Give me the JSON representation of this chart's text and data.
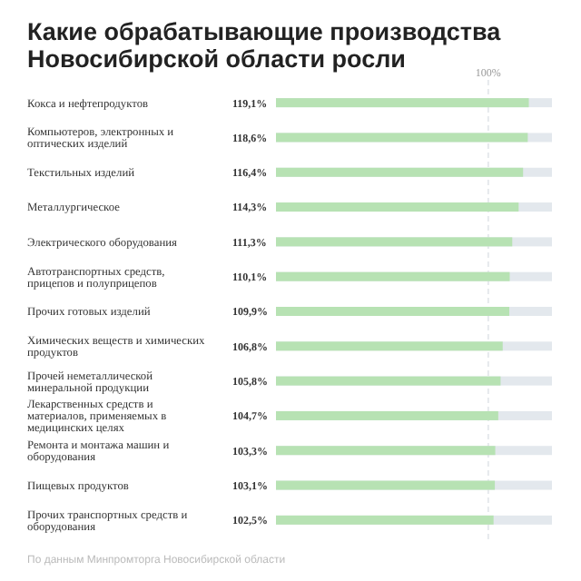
{
  "chart_data": {
    "type": "bar",
    "orientation": "horizontal",
    "title": "Какие обрабатывающие производства Новосибирской области росли",
    "categories": [
      "Кокса и нефтепродуктов",
      "Компьютеров, электронных и оптических изделий",
      "Текстильных изделий",
      "Металлургическое",
      "Электрического оборудования",
      "Автотранспортных средств, прицепов и полуприцепов",
      "Прочих готовых изделий",
      "Химических веществ и химических продуктов",
      "Прочей неметаллической минеральной продукции",
      "Лекарственных средств и материалов, применяемых в медицинских целях",
      "Ремонта и монтажа машин и оборудования",
      "Пищевых продуктов",
      "Прочих транспортных средств и оборудования"
    ],
    "values": [
      119.1,
      118.6,
      116.4,
      114.3,
      111.3,
      110.1,
      109.9,
      106.8,
      105.8,
      104.7,
      103.3,
      103.1,
      102.5
    ],
    "value_labels": [
      "119,1%",
      "118,6%",
      "116,4%",
      "114,3%",
      "111,3%",
      "110,1%",
      "109,9%",
      "106,8%",
      "105,8%",
      "104,7%",
      "103,3%",
      "103,1%",
      "102,5%"
    ],
    "color": "#b7e2b3",
    "xlim": [
      0,
      130
    ],
    "tick_labels": false,
    "ref_lines": [
      {
        "axis": "x",
        "value": 100,
        "label": "100%",
        "color": "#e6e9ec",
        "line_style": "dashed"
      }
    ],
    "annotations": [
      "По данным Минпромторга Новосибирской области"
    ]
  }
}
